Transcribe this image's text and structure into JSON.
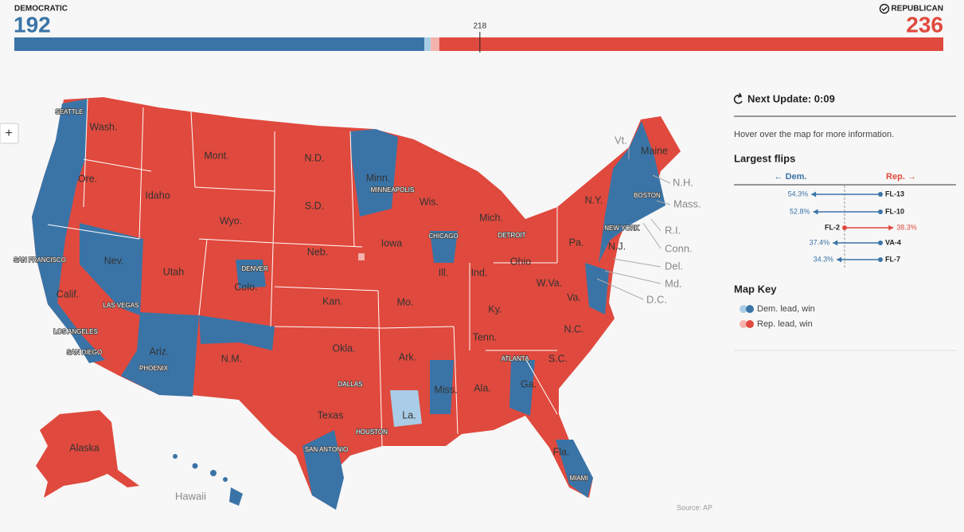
{
  "header": {
    "dem_label": "DEMOCRATIC",
    "dem_seats": 192,
    "rep_label": "REPUBLICAN",
    "rep_seats": 236,
    "majority": 218,
    "dem_lead": 3,
    "rep_lead": 4
  },
  "sidebar": {
    "update": "Next Update: 0:09",
    "hint": "Hover over the map for more information.",
    "flips_title": "Largest flips",
    "dem_axis": "← Dem.",
    "rep_axis": "Rep. →",
    "flips": [
      {
        "district": "FL-13",
        "party": "dem",
        "value": 54.3,
        "value_label": "54.3%"
      },
      {
        "district": "FL-10",
        "party": "dem",
        "value": 52.8,
        "value_label": "52.8%"
      },
      {
        "district": "FL-2",
        "party": "rep",
        "value": 38.3,
        "value_label": "38.3%"
      },
      {
        "district": "VA-4",
        "party": "dem",
        "value": 37.4,
        "value_label": "37.4%"
      },
      {
        "district": "FL-7",
        "party": "dem",
        "value": 34.3,
        "value_label": "34.3%"
      }
    ],
    "key_title": "Map Key",
    "key": [
      "Dem. lead, win",
      "Rep. lead, win"
    ]
  },
  "map": {
    "zoom": "+",
    "states": [
      "Wash.",
      "Ore.",
      "Calif.",
      "Nev.",
      "Idaho",
      "Mont.",
      "Wyo.",
      "Utah",
      "Colo.",
      "Ariz.",
      "N.M.",
      "N.D.",
      "S.D.",
      "Neb.",
      "Kan.",
      "Okla.",
      "Texas",
      "Minn.",
      "Iowa",
      "Mo.",
      "Ark.",
      "La.",
      "Wis.",
      "Ill.",
      "Mich.",
      "Ind.",
      "Ohio",
      "Ky.",
      "Tenn.",
      "Miss.",
      "Ala.",
      "Ga.",
      "Fla.",
      "S.C.",
      "N.C.",
      "Va.",
      "W.Va.",
      "Pa.",
      "N.Y.",
      "Maine",
      "Alaska"
    ],
    "outside_states": [
      "Vt.",
      "N.H.",
      "Mass.",
      "R.I.",
      "Conn.",
      "N.J.",
      "Del.",
      "Md.",
      "D.C.",
      "Hawaii"
    ],
    "cities": [
      "SEATTLE",
      "SAN FRANCISCO",
      "LOS ANGELES",
      "SAN DIEGO",
      "LAS VEGAS",
      "PHOENIX",
      "DENVER",
      "DALLAS",
      "HOUSTON",
      "SAN ANTONIO",
      "MINNEAPOLIS",
      "CHICAGO",
      "DETROIT",
      "NEW YORK",
      "BOSTON",
      "ATLANTA",
      "MIAMI"
    ]
  },
  "source": "Source: AP"
}
